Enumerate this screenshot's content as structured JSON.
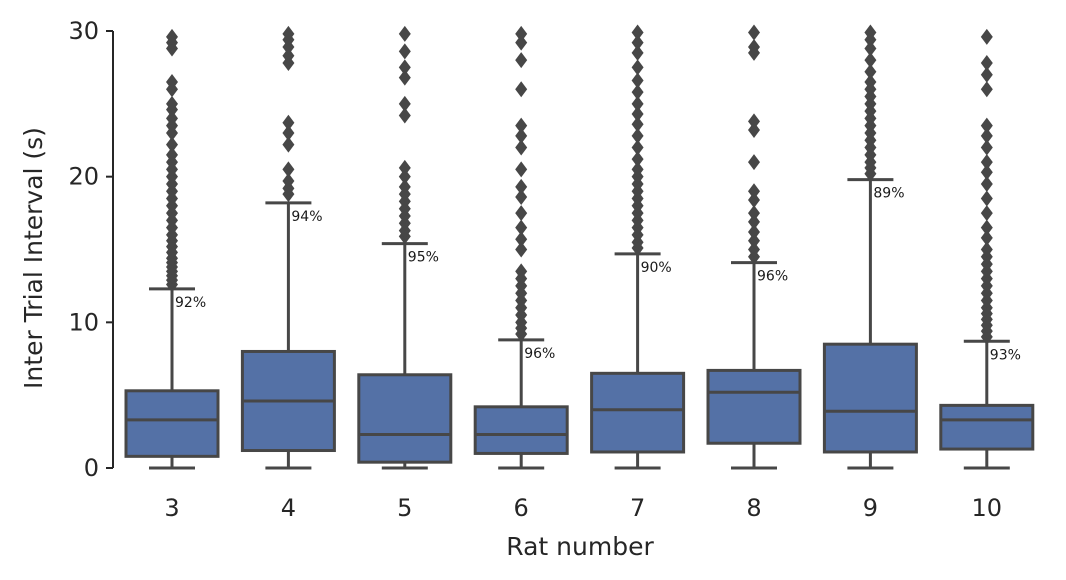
{
  "chart_data": {
    "type": "box",
    "xlabel": "Rat number",
    "ylabel": "Inter Trial Interval (s)",
    "ylim": [
      0,
      30
    ],
    "yticks": [
      0,
      10,
      20,
      30
    ],
    "grid": false,
    "colors": {
      "box": "#5471a6",
      "line": "#474747",
      "text": "#262626"
    },
    "categories": [
      "3",
      "4",
      "5",
      "6",
      "7",
      "8",
      "9",
      "10"
    ],
    "boxes": [
      {
        "min": 0,
        "q1": 0.8,
        "median": 3.3,
        "q3": 5.3,
        "whisker_high": 12.3,
        "annotation": "92%",
        "outliers": [
          12.6,
          12.9,
          13.2,
          13.5,
          13.8,
          14.1,
          14.4,
          14.8,
          15.2,
          15.6,
          16.0,
          16.5,
          17.0,
          17.5,
          18.0,
          18.5,
          19.0,
          19.5,
          20.0,
          20.5,
          21.0,
          21.5,
          22.2,
          23.0,
          23.5,
          24.0,
          24.6,
          25.0,
          26.0,
          26.5,
          28.8,
          29.2,
          29.6
        ]
      },
      {
        "min": 0,
        "q1": 1.2,
        "median": 4.6,
        "q3": 8.0,
        "whisker_high": 18.2,
        "annotation": "94%",
        "outliers": [
          18.8,
          19.2,
          19.7,
          20.5,
          22.2,
          23.0,
          23.7,
          27.8,
          28.3,
          28.9,
          29.4,
          29.8
        ]
      },
      {
        "min": 0,
        "q1": 0.4,
        "median": 2.3,
        "q3": 6.4,
        "whisker_high": 15.4,
        "annotation": "95%",
        "outliers": [
          15.9,
          16.3,
          16.8,
          17.3,
          17.8,
          18.3,
          18.8,
          19.3,
          20.0,
          20.6,
          24.2,
          25.0,
          26.8,
          27.5,
          28.6,
          29.8
        ]
      },
      {
        "min": 0,
        "q1": 1.0,
        "median": 2.3,
        "q3": 4.2,
        "whisker_high": 8.8,
        "annotation": "96%",
        "outliers": [
          9.2,
          9.6,
          10.0,
          10.5,
          11.0,
          11.5,
          12.0,
          12.5,
          13.0,
          13.5,
          15.0,
          15.7,
          16.5,
          17.5,
          18.6,
          19.3,
          20.5,
          22.0,
          22.8,
          23.5,
          26.0,
          28.0,
          29.2,
          29.8
        ]
      },
      {
        "min": 0,
        "q1": 1.1,
        "median": 4.0,
        "q3": 6.5,
        "whisker_high": 14.7,
        "annotation": "90%",
        "outliers": [
          15.1,
          15.5,
          16.0,
          16.5,
          17.0,
          17.5,
          18.0,
          18.5,
          19.0,
          19.5,
          20.0,
          20.5,
          21.2,
          22.0,
          22.8,
          23.6,
          24.3,
          25.0,
          25.8,
          26.6,
          27.5,
          28.5,
          29.2,
          29.9
        ]
      },
      {
        "min": 0,
        "q1": 1.7,
        "median": 5.2,
        "q3": 6.7,
        "whisker_high": 14.1,
        "annotation": "96%",
        "outliers": [
          14.5,
          15.0,
          15.6,
          16.2,
          16.9,
          17.5,
          18.4,
          19.0,
          21.0,
          23.2,
          23.8,
          28.5,
          28.9,
          29.9
        ]
      },
      {
        "min": 0,
        "q1": 1.1,
        "median": 3.9,
        "q3": 8.5,
        "whisker_high": 19.8,
        "annotation": "89%",
        "outliers": [
          20.2,
          20.6,
          21.0,
          21.5,
          22.0,
          22.5,
          23.0,
          23.5,
          24.0,
          24.5,
          25.0,
          25.5,
          26.0,
          26.5,
          27.2,
          28.0,
          28.8,
          29.4,
          29.9
        ]
      },
      {
        "min": 0,
        "q1": 1.3,
        "median": 3.3,
        "q3": 4.3,
        "whisker_high": 8.7,
        "annotation": "93%",
        "outliers": [
          9.0,
          9.4,
          9.8,
          10.2,
          10.6,
          11.0,
          11.5,
          12.0,
          12.5,
          13.0,
          13.5,
          14.0,
          14.5,
          15.0,
          15.8,
          16.5,
          17.5,
          18.5,
          19.5,
          20.3,
          21.0,
          22.0,
          22.8,
          23.5,
          26.0,
          27.0,
          27.8,
          29.6
        ]
      }
    ]
  }
}
